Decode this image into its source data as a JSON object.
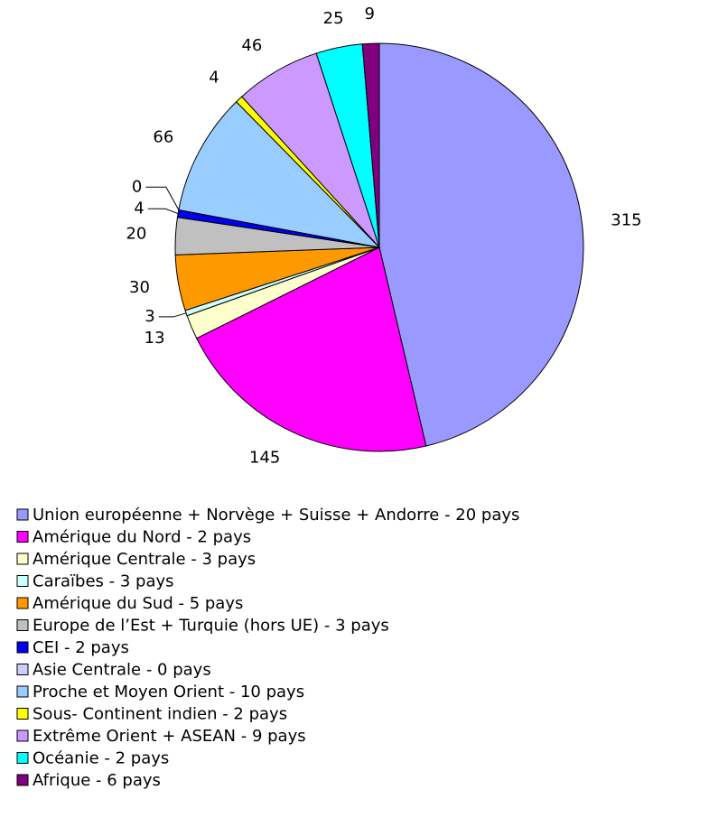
{
  "chart_data": {
    "type": "pie",
    "categories": [
      "Union européenne + Norvège + Suisse + Andorre - 20 pays",
      "Amérique du Nord - 2 pays",
      "Amérique Centrale - 3 pays",
      "Caraïbes - 3 pays",
      "Amérique du Sud - 5 pays",
      "Europe de l’Est + Turquie (hors UE) - 3 pays",
      "CEI - 2 pays",
      "Asie Centrale - 0 pays",
      "Proche et Moyen Orient - 10 pays",
      "Sous- Continent indien - 2 pays",
      "Extrême Orient + ASEAN - 9 pays",
      "Océanie - 2 pays",
      "Afrique - 6 pays"
    ],
    "values": [
      315,
      145,
      13,
      3,
      30,
      20,
      4,
      0,
      66,
      4,
      46,
      25,
      9
    ],
    "colors": [
      "#9999ff",
      "#ff00ff",
      "#ffffcc",
      "#ccffff",
      "#ff9900",
      "#c0c0c0",
      "#0000ee",
      "#ccccff",
      "#99ccff",
      "#ffff00",
      "#cc99ff",
      "#00ffff",
      "#800080"
    ],
    "legend": "bottom"
  }
}
